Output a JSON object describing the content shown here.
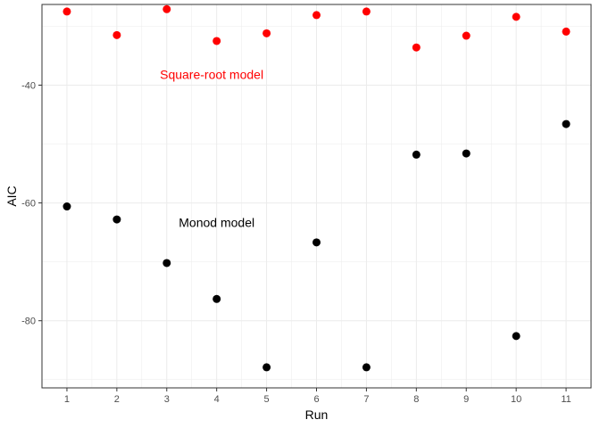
{
  "chart_data": {
    "type": "scatter",
    "title": "",
    "xlabel": "Run",
    "ylabel": "AIC",
    "x": [
      1,
      2,
      3,
      4,
      5,
      6,
      7,
      8,
      9,
      10,
      11
    ],
    "xlim": [
      0.5,
      11.5
    ],
    "ylim": [
      -91.4,
      -26.3
    ],
    "x_ticks": [
      "1",
      "2",
      "3",
      "4",
      "5",
      "6",
      "7",
      "8",
      "9",
      "10",
      "11"
    ],
    "y_ticks": [
      -80,
      -60,
      -40
    ],
    "y_tick_labels": [
      "-80",
      "-60",
      "-40"
    ],
    "grid": true,
    "legend": "none",
    "series": [
      {
        "color": "#ff0000",
        "values": [
          -27.5,
          -31.5,
          -27.1,
          -32.5,
          -31.2,
          -28.1,
          -27.5,
          -33.6,
          -31.6,
          -28.4,
          -30.9
        ]
      },
      {
        "color": "#000000",
        "values": [
          -60.6,
          -62.8,
          -70.2,
          -76.3,
          -87.9,
          -66.7,
          -87.9,
          -51.8,
          -51.6,
          -82.6,
          -46.6
        ]
      }
    ],
    "annotations": [
      {
        "text": "Square-root model",
        "x": 3.9,
        "y": -38.2,
        "color": "#ff0000"
      },
      {
        "text": "Monod model",
        "x": 4.0,
        "y": -63.3,
        "color": "#000000"
      }
    ]
  }
}
